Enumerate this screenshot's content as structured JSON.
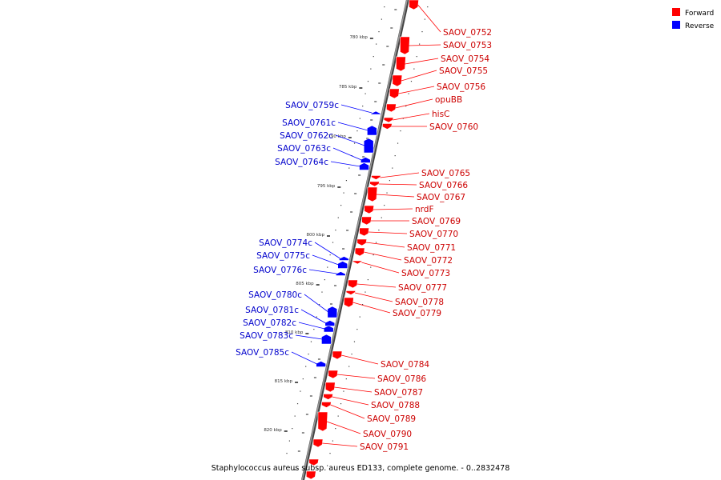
{
  "colors": {
    "forward": "#ff0000",
    "reverse": "#0000ff",
    "axis": "#7a7a7a",
    "label_forward": "#cc0000",
    "label_reverse": "#0000cc"
  },
  "legend": [
    {
      "label": "Forward",
      "color": "#ff0000"
    },
    {
      "label": "Reverse",
      "color": "#0000ff"
    }
  ],
  "caption": "Staphylococcus aureus subsp. aureus ED133, complete genome. - 0..2832478",
  "ticks": [
    "780 kbp",
    "785 kbp",
    "790 kbp",
    "795 kbp",
    "800 kbp",
    "805 kbp",
    "810 kbp",
    "815 kbp",
    "820 kbp"
  ],
  "forward_genes": [
    "SAOV_0752",
    "SAOV_0753",
    "SAOV_0754",
    "SAOV_0755",
    "SAOV_0756",
    "opuBB",
    "hisC",
    "SAOV_0760",
    "SAOV_0765",
    "SAOV_0766",
    "SAOV_0767",
    "nrdF",
    "SAOV_0769",
    "SAOV_0770",
    "SAOV_0771",
    "SAOV_0772",
    "SAOV_0773",
    "SAOV_0777",
    "SAOV_0778",
    "SAOV_0779",
    "SAOV_0784",
    "SAOV_0786",
    "SAOV_0787",
    "SAOV_0788",
    "SAOV_0789",
    "SAOV_0790",
    "SAOV_0791"
  ],
  "reverse_genes": [
    "SAOV_0759c",
    "SAOV_0761c",
    "SAOV_0762c",
    "SAOV_0763c",
    "SAOV_0764c",
    "SAOV_0774c",
    "SAOV_0775c",
    "SAOV_0776c",
    "SAOV_0780c",
    "SAOV_0781c",
    "SAOV_0782c",
    "SAOV_0783c",
    "SAOV_0785c"
  ]
}
